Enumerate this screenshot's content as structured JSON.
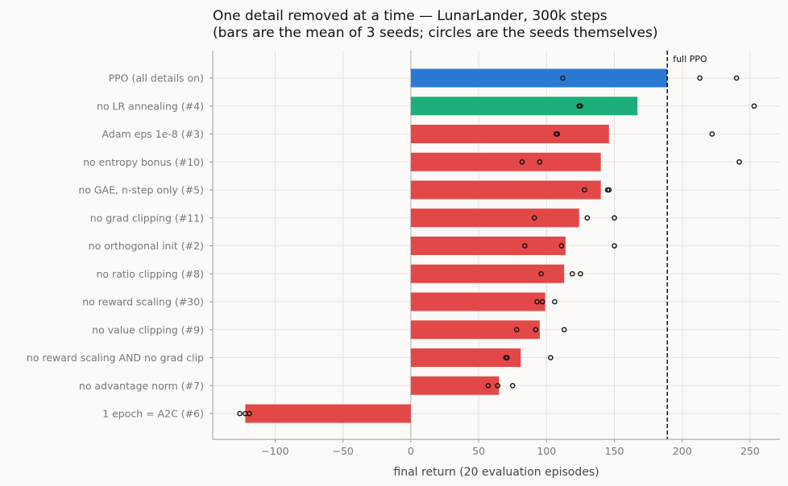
{
  "chart_data": {
    "type": "bar",
    "orientation": "horizontal",
    "title_line1": "One detail removed at a time — LunarLander, 300k steps",
    "title_line2": "(bars are the mean of 3 seeds; circles are the seeds themselves)",
    "xlabel": "final return (20 evaluation episodes)",
    "ylabel": "",
    "xlim": [
      -146,
      272
    ],
    "xticks": [
      -100,
      -50,
      0,
      50,
      100,
      150,
      200,
      250
    ],
    "xtick_labels": [
      "−100",
      "−50",
      "0",
      "50",
      "100",
      "150",
      "200",
      "250"
    ],
    "grid": true,
    "reference_line": {
      "x": 189,
      "label": "full PPO",
      "style": "dashed"
    },
    "colors": {
      "baseline": "#2a7ad5",
      "improved": "#1daf7a",
      "worse": "#e34848"
    },
    "categories": [
      "PPO (all details on)",
      "no LR annealing (#4)",
      "Adam eps 1e-8 (#3)",
      "no entropy bonus (#10)",
      "no GAE, n-step only (#5)",
      "no grad clipping (#11)",
      "no orthogonal init (#2)",
      "no ratio clipping (#8)",
      "no reward scaling (#30)",
      "no value clipping (#9)",
      "no reward scaling AND no grad clip",
      "no advantage norm (#7)",
      "1 epoch = A2C (#6)"
    ],
    "means": [
      189,
      167,
      146,
      140,
      140,
      124,
      114,
      113,
      99,
      95,
      81,
      65,
      -122
    ],
    "bar_colors": [
      "baseline",
      "improved",
      "worse",
      "worse",
      "worse",
      "worse",
      "worse",
      "worse",
      "worse",
      "worse",
      "worse",
      "worse",
      "worse"
    ],
    "seeds": [
      [
        112,
        213,
        240
      ],
      [
        124,
        125,
        253
      ],
      [
        107,
        108,
        222
      ],
      [
        82,
        95,
        242
      ],
      [
        128,
        145,
        146
      ],
      [
        91,
        130,
        150
      ],
      [
        84,
        111,
        150
      ],
      [
        96,
        119,
        125
      ],
      [
        93,
        97,
        106
      ],
      [
        78,
        92,
        113
      ],
      [
        70,
        71,
        103
      ],
      [
        57,
        64,
        75
      ],
      [
        -126,
        -122,
        -119
      ]
    ]
  }
}
